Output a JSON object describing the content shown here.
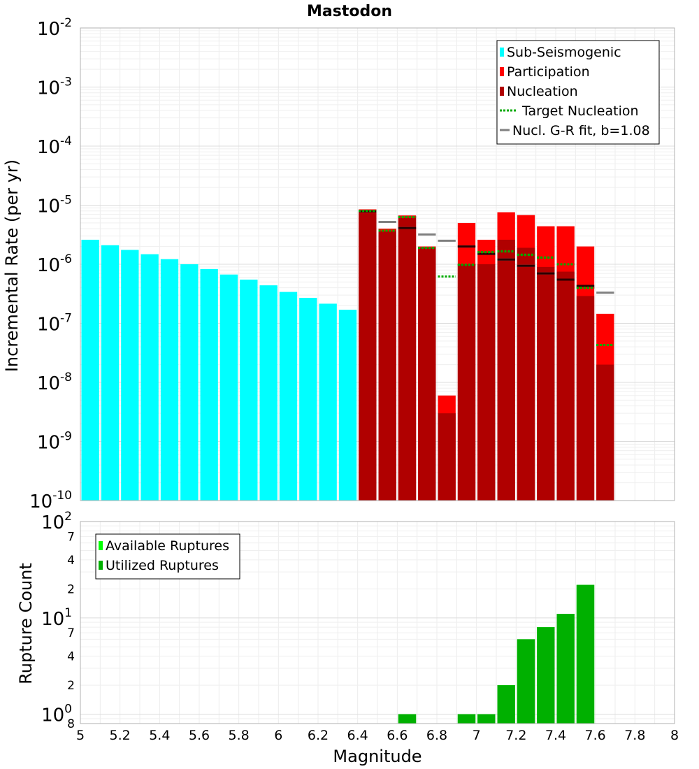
{
  "chart_data": [
    {
      "type": "bar",
      "title": "Mastodon",
      "xlabel": "",
      "ylabel": "Incremental Rate (per yr)",
      "y_scale": "log",
      "xlim": [
        5,
        8
      ],
      "ylim": [
        1e-10,
        0.01
      ],
      "bin_width": 0.1,
      "grid": true,
      "legend_position": "top-right",
      "x_ticks": [
        "5",
        "5.2",
        "5.4",
        "5.6",
        "5.8",
        "6",
        "6.2",
        "6.4",
        "6.6",
        "6.8",
        "7",
        "7.2",
        "7.4",
        "7.6",
        "7.8",
        "8"
      ],
      "y_ticks": [
        {
          "base": "10",
          "exp": "-2",
          "value": 0.01
        },
        {
          "base": "10",
          "exp": "-3",
          "value": 0.001
        },
        {
          "base": "10",
          "exp": "-4",
          "value": 0.0001
        },
        {
          "base": "10",
          "exp": "-5",
          "value": 1e-05
        },
        {
          "base": "10",
          "exp": "-6",
          "value": 1e-06
        },
        {
          "base": "10",
          "exp": "-7",
          "value": 1e-07
        },
        {
          "base": "10",
          "exp": "-8",
          "value": 1e-08
        },
        {
          "base": "10",
          "exp": "-9",
          "value": 1e-09
        },
        {
          "base": "10",
          "exp": "-10",
          "value": 1e-10
        }
      ],
      "series": [
        {
          "name": "Sub-Seismogenic",
          "color": "#00ffff",
          "kind": "bars",
          "points": [
            {
              "x": 5.05,
              "y": 2.6e-06
            },
            {
              "x": 5.15,
              "y": 2.1e-06
            },
            {
              "x": 5.25,
              "y": 1.75e-06
            },
            {
              "x": 5.35,
              "y": 1.48e-06
            },
            {
              "x": 5.45,
              "y": 1.22e-06
            },
            {
              "x": 5.55,
              "y": 1e-06
            },
            {
              "x": 5.65,
              "y": 8.3e-07
            },
            {
              "x": 5.75,
              "y": 6.7e-07
            },
            {
              "x": 5.85,
              "y": 5.5e-07
            },
            {
              "x": 5.95,
              "y": 4.4e-07
            },
            {
              "x": 6.05,
              "y": 3.4e-07
            },
            {
              "x": 6.15,
              "y": 2.7e-07
            },
            {
              "x": 6.25,
              "y": 2.15e-07
            },
            {
              "x": 6.35,
              "y": 1.7e-07
            }
          ]
        },
        {
          "name": "Participation",
          "color": "#ff0000",
          "kind": "bars",
          "points": [
            {
              "x": 6.45,
              "y": 8.5e-06
            },
            {
              "x": 6.55,
              "y": 4e-06
            },
            {
              "x": 6.65,
              "y": 6.7e-06
            },
            {
              "x": 6.75,
              "y": 2e-06
            },
            {
              "x": 6.85,
              "y": 6e-09
            },
            {
              "x": 6.95,
              "y": 5e-06
            },
            {
              "x": 7.05,
              "y": 2.6e-06
            },
            {
              "x": 7.15,
              "y": 7.6e-06
            },
            {
              "x": 7.25,
              "y": 6.8e-06
            },
            {
              "x": 7.35,
              "y": 4.4e-06
            },
            {
              "x": 7.45,
              "y": 4.4e-06
            },
            {
              "x": 7.55,
              "y": 2e-06
            },
            {
              "x": 7.65,
              "y": 1.45e-07
            }
          ]
        },
        {
          "name": "Nucleation",
          "color": "#b00000",
          "kind": "bars",
          "points": [
            {
              "x": 6.45,
              "y": 7.3e-06
            },
            {
              "x": 6.55,
              "y": 3.6e-06
            },
            {
              "x": 6.65,
              "y": 6.1e-06
            },
            {
              "x": 6.75,
              "y": 1.9e-06
            },
            {
              "x": 6.85,
              "y": 3e-09
            },
            {
              "x": 6.95,
              "y": 1e-06
            },
            {
              "x": 7.05,
              "y": 1e-06
            },
            {
              "x": 7.15,
              "y": 2.6e-06
            },
            {
              "x": 7.25,
              "y": 1.9e-06
            },
            {
              "x": 7.35,
              "y": 9e-07
            },
            {
              "x": 7.45,
              "y": 7.5e-07
            },
            {
              "x": 7.55,
              "y": 2.9e-07
            },
            {
              "x": 7.65,
              "y": 2e-08
            }
          ]
        },
        {
          "name": "Target Nucleation",
          "color": "#00aa00",
          "kind": "dotted-steps",
          "points": [
            {
              "x": 6.45,
              "y": 8e-06
            },
            {
              "x": 6.55,
              "y": 3.7e-06
            },
            {
              "x": 6.65,
              "y": 6.3e-06
            },
            {
              "x": 6.75,
              "y": 1.9e-06
            },
            {
              "x": 6.85,
              "y": 6.2e-07
            },
            {
              "x": 6.95,
              "y": 9.8e-07
            },
            {
              "x": 7.05,
              "y": 1.6e-06
            },
            {
              "x": 7.15,
              "y": 1.65e-06
            },
            {
              "x": 7.25,
              "y": 1.45e-06
            },
            {
              "x": 7.35,
              "y": 1.3e-06
            },
            {
              "x": 7.45,
              "y": 1e-06
            },
            {
              "x": 7.55,
              "y": 4e-07
            },
            {
              "x": 7.65,
              "y": 4.3e-08
            }
          ]
        },
        {
          "name": "Nucl. G-R fit, b=1.08",
          "color": "#808080",
          "kind": "steps",
          "points": [
            {
              "x": 6.45,
              "y": 7.8e-06
            },
            {
              "x": 6.55,
              "y": 5.2e-06
            },
            {
              "x": 6.65,
              "y": 4.1e-06
            },
            {
              "x": 6.75,
              "y": 3.2e-06
            },
            {
              "x": 6.85,
              "y": 2.5e-06
            },
            {
              "x": 6.95,
              "y": 2e-06
            },
            {
              "x": 7.05,
              "y": 1.5e-06
            },
            {
              "x": 7.15,
              "y": 1.2e-06
            },
            {
              "x": 7.25,
              "y": 9.4e-07
            },
            {
              "x": 7.35,
              "y": 7e-07
            },
            {
              "x": 7.45,
              "y": 5.5e-07
            },
            {
              "x": 7.55,
              "y": 4.3e-07
            },
            {
              "x": 7.65,
              "y": 3.3e-07
            }
          ]
        }
      ]
    },
    {
      "type": "bar",
      "title": "",
      "xlabel": "Magnitude",
      "ylabel": "Rupture Count",
      "y_scale": "log",
      "xlim": [
        5,
        8
      ],
      "ylim": [
        0.8,
        100
      ],
      "bin_width": 0.1,
      "grid": true,
      "legend_position": "top-left",
      "x_ticks": [
        "5",
        "5.2",
        "5.4",
        "5.6",
        "5.8",
        "6",
        "6.2",
        "6.4",
        "6.6",
        "6.8",
        "7",
        "7.2",
        "7.4",
        "7.6",
        "7.8",
        "8"
      ],
      "y_ticks": [
        {
          "base": "10",
          "exp": "2",
          "value": 100
        },
        {
          "base": "",
          "exp": "",
          "label": "7",
          "value": 70
        },
        {
          "base": "",
          "exp": "",
          "label": "4",
          "value": 40
        },
        {
          "base": "",
          "exp": "",
          "label": "2",
          "value": 20
        },
        {
          "base": "10",
          "exp": "1",
          "value": 10
        },
        {
          "base": "",
          "exp": "",
          "label": "7",
          "value": 7
        },
        {
          "base": "",
          "exp": "",
          "label": "4",
          "value": 4
        },
        {
          "base": "",
          "exp": "",
          "label": "2",
          "value": 2
        },
        {
          "base": "10",
          "exp": "0",
          "value": 1
        },
        {
          "base": "",
          "exp": "",
          "label": "8",
          "value": 0.8
        }
      ],
      "series": [
        {
          "name": "Available Ruptures",
          "color": "#00ff00",
          "kind": "bars",
          "points": [
            {
              "x": 6.65,
              "y": 1
            },
            {
              "x": 6.95,
              "y": 1
            },
            {
              "x": 7.05,
              "y": 1
            },
            {
              "x": 7.15,
              "y": 2
            },
            {
              "x": 7.25,
              "y": 6
            },
            {
              "x": 7.35,
              "y": 8
            },
            {
              "x": 7.45,
              "y": 11
            },
            {
              "x": 7.55,
              "y": 22
            }
          ]
        },
        {
          "name": "Utilized Ruptures",
          "color": "#00b000",
          "kind": "bars",
          "points": [
            {
              "x": 6.65,
              "y": 1
            },
            {
              "x": 6.95,
              "y": 1
            },
            {
              "x": 7.05,
              "y": 1
            },
            {
              "x": 7.15,
              "y": 2
            },
            {
              "x": 7.25,
              "y": 6
            },
            {
              "x": 7.35,
              "y": 8
            },
            {
              "x": 7.45,
              "y": 11
            },
            {
              "x": 7.55,
              "y": 22
            }
          ]
        }
      ]
    }
  ]
}
